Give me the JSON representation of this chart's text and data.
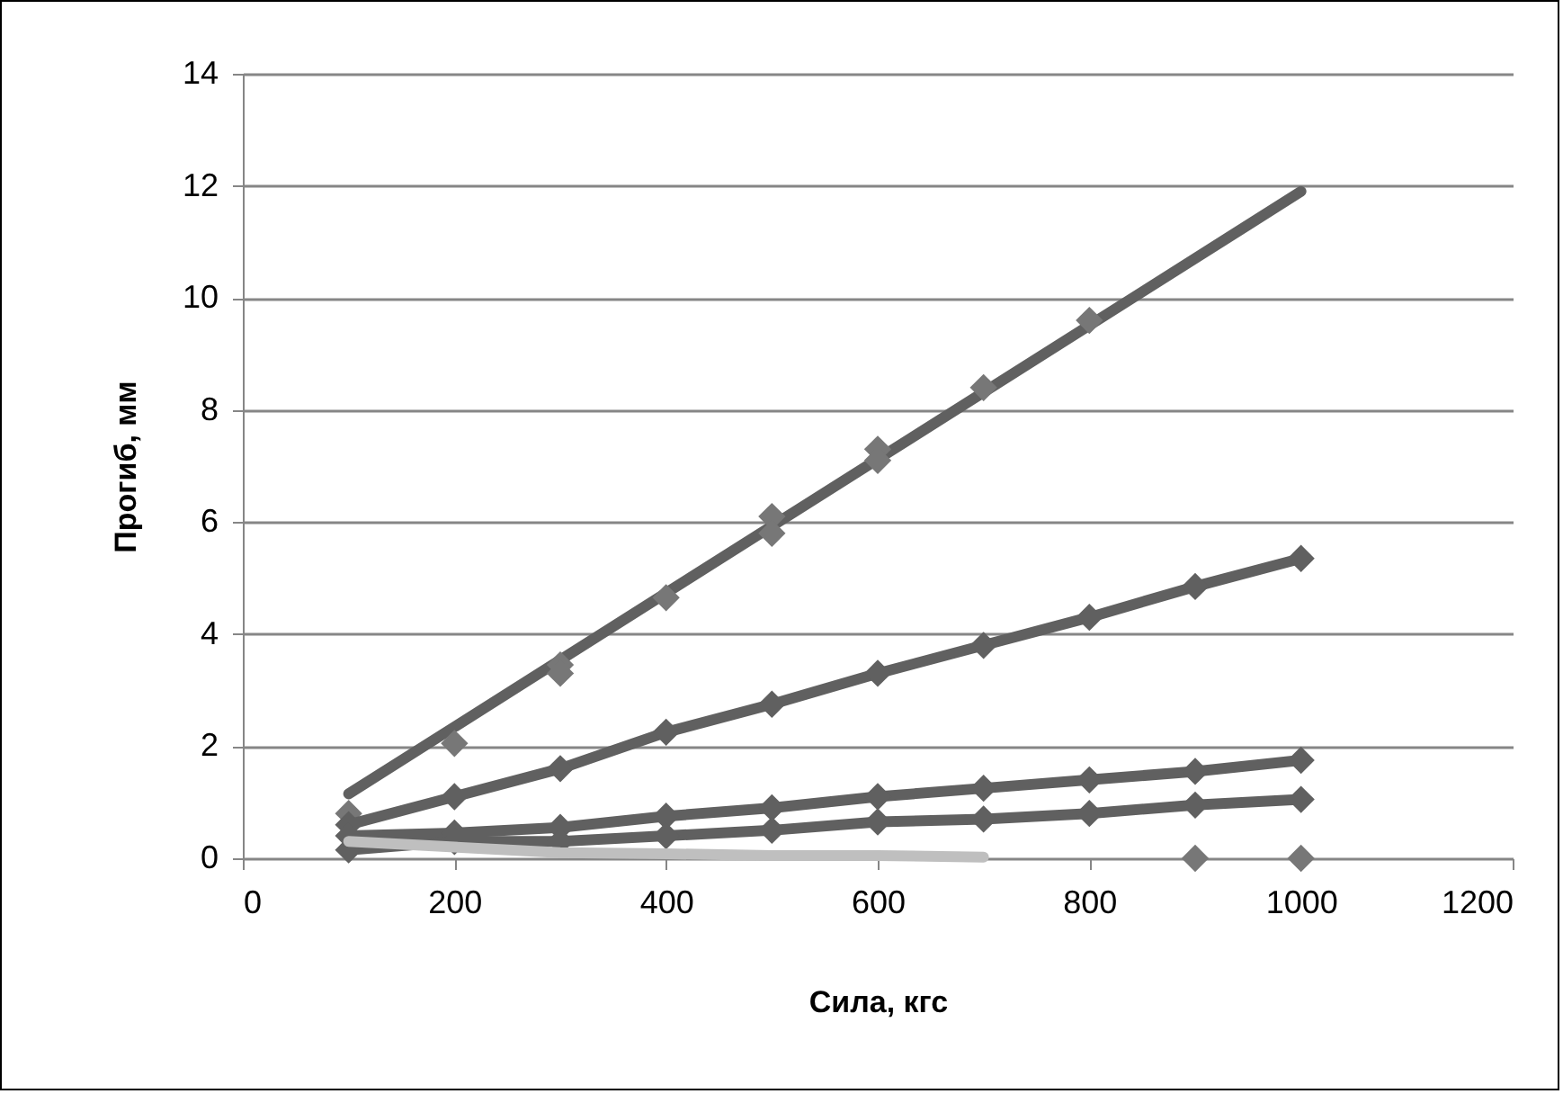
{
  "chart_data": {
    "type": "line",
    "xlabel": "Сила, кгс",
    "ylabel": "Прогиб, мм",
    "xlim": [
      0,
      1200
    ],
    "xticks": [
      0,
      200,
      400,
      600,
      800,
      1000,
      1200
    ],
    "ylim": [
      0,
      14
    ],
    "yticks": [
      0,
      2,
      4,
      6,
      8,
      10,
      12,
      14
    ],
    "grid": "y",
    "marker": "diamond",
    "line_style": "solid",
    "series": [
      {
        "type": "line",
        "marker": "none",
        "color": "#606060",
        "x": [
          100,
          1000
        ],
        "values": [
          1.15,
          11.9
        ]
      },
      {
        "type": "scatter",
        "color": "#777777",
        "x": [
          100,
          200,
          300,
          300,
          400,
          500,
          500,
          600,
          600,
          700,
          800
        ],
        "values": [
          0.8,
          2.05,
          3.45,
          3.3,
          4.65,
          6.1,
          5.8,
          7.3,
          7.1,
          8.4,
          9.6
        ]
      },
      {
        "color": "#606060",
        "x": [
          100,
          200,
          300,
          400,
          500,
          600,
          700,
          800,
          900,
          1000
        ],
        "values": [
          0.6,
          1.1,
          1.6,
          2.25,
          2.75,
          3.3,
          3.8,
          4.3,
          4.85,
          5.35
        ]
      },
      {
        "color": "#606060",
        "x": [
          100,
          200,
          300,
          400,
          500,
          600,
          700,
          800,
          900,
          1000
        ],
        "values": [
          0.4,
          0.45,
          0.55,
          0.75,
          0.9,
          1.1,
          1.25,
          1.4,
          1.55,
          1.75
        ]
      },
      {
        "color": "#606060",
        "x": [
          100,
          200,
          300,
          400,
          500,
          600,
          700,
          800,
          900,
          1000
        ],
        "values": [
          0.15,
          0.3,
          0.3,
          0.4,
          0.5,
          0.65,
          0.7,
          0.8,
          0.95,
          1.05
        ]
      },
      {
        "type": "line",
        "marker": "none",
        "color": "#bfbfbf",
        "x": [
          100,
          200,
          300,
          400,
          500,
          600,
          700
        ],
        "values": [
          0.3,
          0.2,
          0.1,
          0.08,
          0.05,
          0.05,
          0.02
        ]
      },
      {
        "type": "scatter",
        "color": "#777777",
        "x": [
          900,
          1000
        ],
        "values": [
          0,
          0
        ]
      }
    ]
  }
}
